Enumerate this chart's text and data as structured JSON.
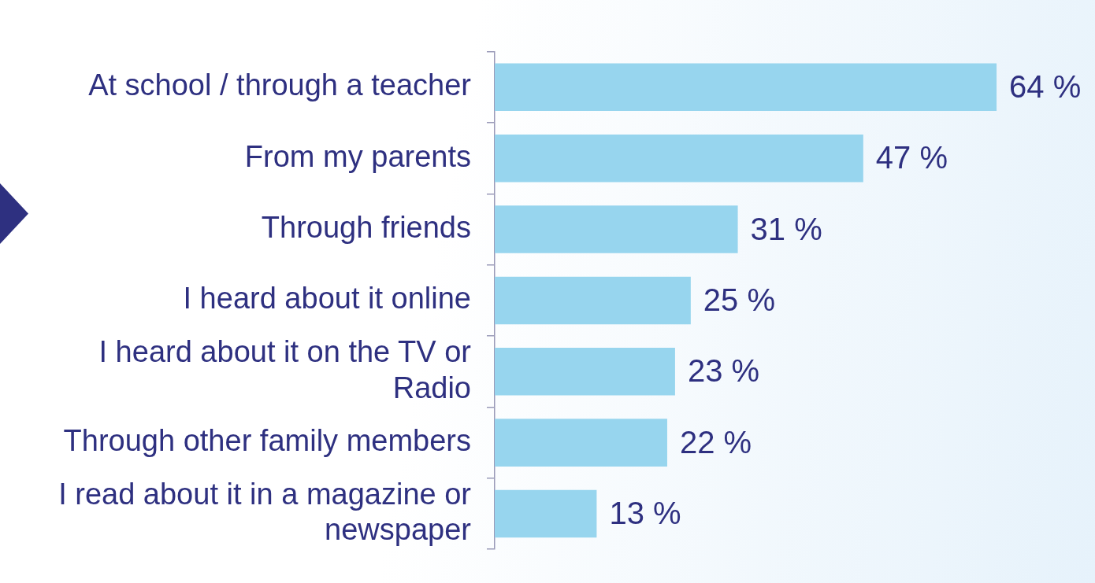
{
  "chart_data": {
    "type": "bar",
    "orientation": "horizontal",
    "categories": [
      "At school / through a teacher",
      "From my parents",
      "Through friends",
      "I heard about it online",
      "I heard about it on the TV or Radio",
      "Through other family members",
      "I read about it in a magazine or newspaper"
    ],
    "values": [
      64,
      47,
      31,
      25,
      23,
      22,
      13
    ],
    "value_labels": [
      "64 %",
      "47 %",
      "31 %",
      "25 %",
      "23 %",
      "22 %",
      "13 %"
    ],
    "color": "#97d5ee",
    "legend": false
  }
}
